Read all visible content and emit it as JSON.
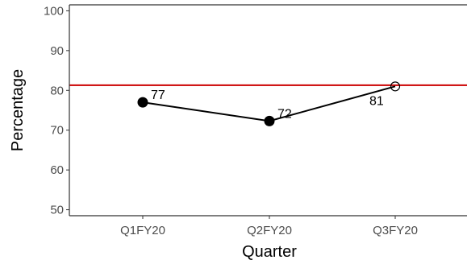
{
  "chart_data": {
    "type": "line",
    "title": "",
    "xlabel": "Quarter",
    "ylabel": "Percentage",
    "categories": [
      "Q1FY20",
      "Q2FY20",
      "Q3FY20"
    ],
    "series": [
      {
        "values": [
          77,
          72.3,
          81
        ],
        "labels": [
          "77",
          "72",
          "81"
        ],
        "markers": [
          "filled",
          "filled",
          "open"
        ]
      }
    ],
    "reference_line": {
      "y": 81.3,
      "color": "#cc0000"
    },
    "ylim": [
      48.5,
      101.5
    ],
    "yticks": [
      50,
      60,
      70,
      80,
      90,
      100
    ],
    "grid": false,
    "legend": "none",
    "colors": {
      "series": "#000000",
      "axis": "#333333"
    }
  }
}
